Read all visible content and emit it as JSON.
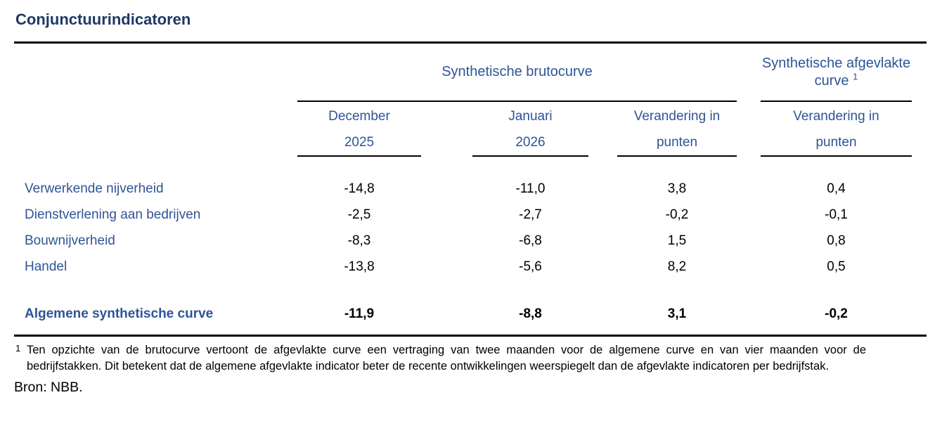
{
  "title": "Conjunctuurindicatoren",
  "table": {
    "group_headers": [
      {
        "label": "Synthetische brutocurve"
      },
      {
        "label": "Synthetische afgevlakte curve",
        "footnote_ref": "1"
      }
    ],
    "column_headers": [
      {
        "line1": "December",
        "line2": "2025"
      },
      {
        "line1": "Januari",
        "line2": "2026"
      },
      {
        "line1": "Verandering in",
        "line2": "punten"
      },
      {
        "line1": "Verandering in",
        "line2": "punten"
      }
    ],
    "rows": [
      {
        "label": "Verwerkende nijverheid",
        "values": [
          "-14,8",
          "-11,0",
          "3,8",
          "0,4"
        ]
      },
      {
        "label": "Dienstverlening aan bedrijven",
        "values": [
          "-2,5",
          "-2,7",
          "-0,2",
          "-0,1"
        ]
      },
      {
        "label": "Bouwnijverheid",
        "values": [
          "-8,3",
          "-6,8",
          "1,5",
          "0,8"
        ]
      },
      {
        "label": "Handel",
        "values": [
          "-13,8",
          "-5,6",
          "8,2",
          "0,5"
        ]
      }
    ],
    "total_row": {
      "label": "Algemene synthetische curve",
      "values": [
        "-11,9",
        "-8,8",
        "3,1",
        "-0,2"
      ]
    }
  },
  "footnote": {
    "marker": "1",
    "text": "Ten opzichte van de brutocurve vertoont de afgevlakte curve een vertraging van twee maanden voor de algemene curve en van vier maanden voor de bedrijfstakken. Dit betekent dat de algemene afgevlakte indicator beter de recente ontwikkelingen weerspiegelt dan de afgevlakte indicatoren per bedrijfstak."
  },
  "source": "Bron: NBB.",
  "colors": {
    "title_navy": "#1F3864",
    "header_blue": "#2F5496",
    "text_black": "#000000",
    "rule_black": "#000000"
  }
}
